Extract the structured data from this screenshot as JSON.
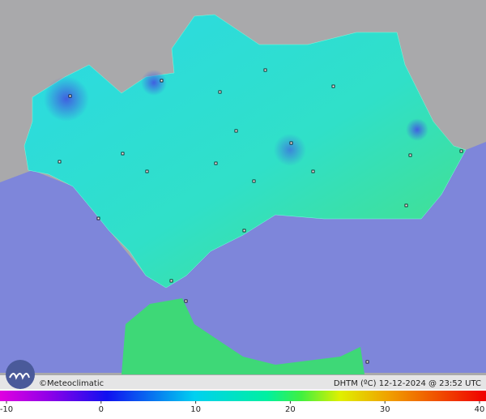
{
  "credit": "©Meteoclimatic",
  "caption": "DHTM (ºC) 12-12-2024 @ 23:52 UTC",
  "colorbar": {
    "ticks": [
      -10,
      0,
      10,
      20,
      30,
      40
    ]
  }
}
